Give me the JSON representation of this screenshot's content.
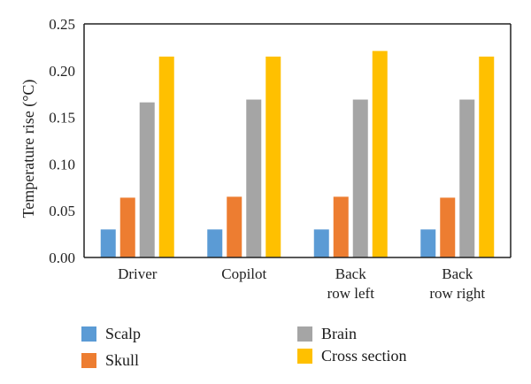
{
  "chart_data": {
    "type": "bar",
    "categories": [
      "Driver",
      "Copilot",
      "Back row left",
      "Back row right"
    ],
    "category_lines": [
      [
        "Driver"
      ],
      [
        "Copilot"
      ],
      [
        "Back",
        "row left"
      ],
      [
        "Back",
        "row right"
      ]
    ],
    "series": [
      {
        "name": "Scalp",
        "color": "#5b9bd5",
        "values": [
          0.03,
          0.03,
          0.03,
          0.03
        ]
      },
      {
        "name": "Skull",
        "color": "#ed7d31",
        "values": [
          0.064,
          0.065,
          0.065,
          0.064
        ]
      },
      {
        "name": "Brain",
        "color": "#a5a5a5",
        "values": [
          0.166,
          0.169,
          0.169,
          0.169
        ]
      },
      {
        "name": "Cross section",
        "color": "#ffc000",
        "values": [
          0.215,
          0.215,
          0.221,
          0.215
        ]
      }
    ],
    "ylabel": "Temperature rise (°C)",
    "xlabel": "",
    "ylim": [
      0,
      0.25
    ],
    "yticks": [
      "0.00",
      "0.05",
      "0.10",
      "0.15",
      "0.20",
      "0.25"
    ],
    "grid": false,
    "legend_position": "bottom"
  }
}
